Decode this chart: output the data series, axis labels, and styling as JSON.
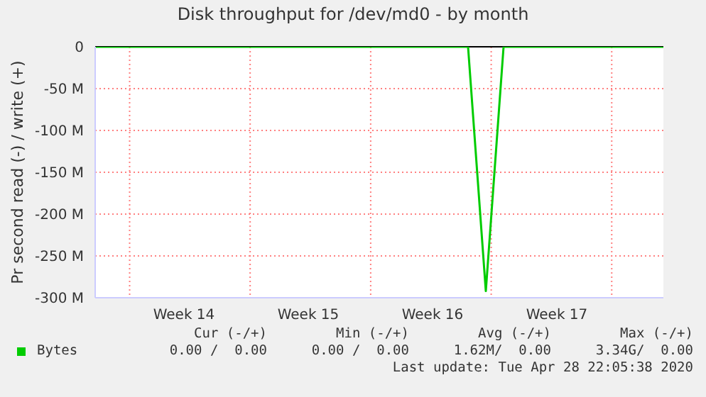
{
  "chart_data": {
    "type": "line",
    "title": "Disk throughput for /dev/md0 - by month",
    "ylabel": "Pr second read (-) / write (+)",
    "categories": [
      null,
      null,
      null,
      null,
      null,
      "Week 14",
      null,
      null,
      null,
      null,
      null,
      null,
      "Week 15",
      null,
      null,
      null,
      null,
      null,
      null,
      "Week 16",
      null,
      null,
      null,
      null,
      null,
      null,
      "Week 17",
      null,
      null,
      null,
      null,
      null,
      null
    ],
    "series": [
      {
        "name": "Bytes",
        "color": "#00cc00",
        "values": [
          0,
          0,
          0,
          0,
          0,
          0,
          0,
          0,
          0,
          0,
          0,
          0,
          0,
          0,
          0,
          0,
          0,
          0,
          0,
          0,
          0,
          0,
          -292,
          0,
          0,
          0,
          0,
          0,
          0,
          0,
          0,
          0,
          0
        ]
      }
    ],
    "ylim": [
      -300,
      0
    ],
    "yticks": [
      {
        "value": -300,
        "label": "-300 M"
      },
      {
        "value": -250,
        "label": "-250 M"
      },
      {
        "value": -200,
        "label": "-200 M"
      },
      {
        "value": -150,
        "label": "-150 M"
      },
      {
        "value": -100,
        "label": "-100 M"
      },
      {
        "value": -50,
        "label": "-50 M"
      },
      0
    ],
    "grid": true,
    "legend": "bottom left",
    "marker": "none",
    "line_style": "solid",
    "annotations": [
      "Cur (-/+)",
      "Min (-/+)",
      "Avg (-/+)",
      "Max (-/+)",
      "0.00 /  0.00",
      "0.00 /  0.00",
      "1.62M/  0.00",
      "3.34G/  0.00",
      "Last update: Tue Apr 28 22:05:38 2020"
    ]
  }
}
